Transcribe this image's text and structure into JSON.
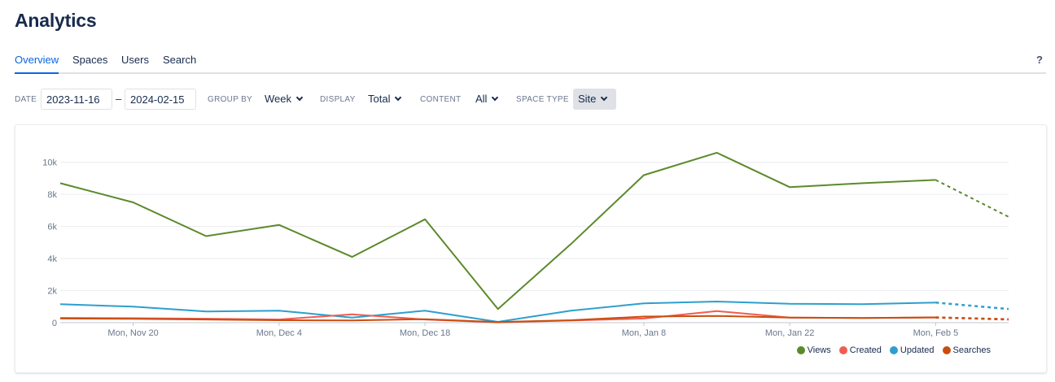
{
  "header": {
    "title": "Analytics"
  },
  "tabs": [
    {
      "label": "Overview",
      "active": true
    },
    {
      "label": "Spaces",
      "active": false
    },
    {
      "label": "Users",
      "active": false
    },
    {
      "label": "Search",
      "active": false
    }
  ],
  "help_label": "?",
  "filters": {
    "date_label": "DATE",
    "date_from": "2023-11-16",
    "date_sep": "–",
    "date_to": "2024-02-15",
    "group_by_label": "GROUP BY",
    "group_by_value": "Week",
    "display_label": "DISPLAY",
    "display_value": "Total",
    "content_label": "CONTENT",
    "content_value": "All",
    "space_type_label": "SPACE TYPE",
    "space_type_value": "Site"
  },
  "chart_data": {
    "type": "line",
    "ylim": [
      0,
      11000
    ],
    "yticks": [
      0,
      2000,
      4000,
      6000,
      8000,
      10000
    ],
    "ytick_labels": [
      "0",
      "2k",
      "4k",
      "6k",
      "8k",
      "10k"
    ],
    "x_tick_labels": [
      {
        "label": "Mon, Nov 20",
        "index": 1
      },
      {
        "label": "Mon, Dec 4",
        "index": 3
      },
      {
        "label": "Mon, Dec 18",
        "index": 5
      },
      {
        "label": "Mon, Jan 8",
        "index": 8
      },
      {
        "label": "Mon, Jan 22",
        "index": 10
      },
      {
        "label": "Mon, Feb 5",
        "index": 12
      }
    ],
    "point_count": 14,
    "projected_from_index": 12,
    "grid": true,
    "legend_position": "bottom-right",
    "series": [
      {
        "name": "Views",
        "color": "#5b8a2b",
        "values": [
          8700,
          7500,
          5400,
          6100,
          4100,
          6450,
          850,
          4900,
          9200,
          10600,
          8450,
          8700,
          8900,
          6600
        ]
      },
      {
        "name": "Created",
        "color": "#f15c50",
        "values": [
          300,
          280,
          250,
          200,
          520,
          200,
          20,
          130,
          260,
          720,
          320,
          290,
          320,
          220
        ]
      },
      {
        "name": "Updated",
        "color": "#2d9fce",
        "values": [
          1150,
          1000,
          700,
          750,
          320,
          750,
          50,
          750,
          1200,
          1320,
          1180,
          1150,
          1250,
          850
        ]
      },
      {
        "name": "Searches",
        "color": "#c94e0e",
        "values": [
          260,
          240,
          200,
          150,
          140,
          220,
          40,
          150,
          380,
          420,
          320,
          290,
          330,
          200
        ]
      }
    ]
  }
}
